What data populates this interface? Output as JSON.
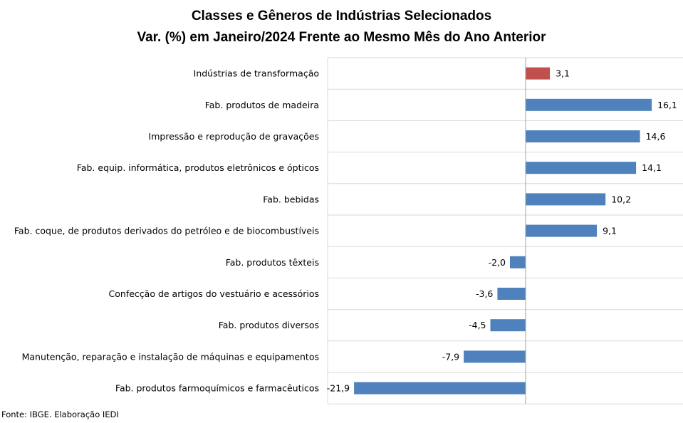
{
  "title_line1": "Classes e Gêneros de Indústrias Selecionados",
  "title_line2": "Var. (%) em Janeiro/2024 Frente ao Mesmo Mês do Ano Anterior",
  "source": "Fonte: IBGE. Elaboração IEDI",
  "colors": {
    "highlight": "#C0504D",
    "bar": "#4F81BD",
    "grid": "#d9d9d9",
    "axis": "#a0a0a0"
  },
  "chart_data": {
    "type": "bar",
    "orientation": "horizontal",
    "categories": [
      "Indústrias de transformação",
      "Fab. produtos de madeira",
      "Impressão e reprodução de gravações",
      "Fab. equip. informática, produtos eletrônicos e ópticos",
      "Fab. bebidas",
      "Fab. coque, de produtos derivados do petróleo e de biocombustíveis",
      "Fab. produtos têxteis",
      "Confecção de artigos do vestuário e acessórios",
      "Fab. produtos diversos",
      "Manutenção, reparação e instalação de máquinas e equipamentos",
      "Fab. produtos farmoquímicos e farmacêuticos"
    ],
    "values": [
      3.1,
      16.1,
      14.6,
      14.1,
      10.2,
      9.1,
      -2.0,
      -3.6,
      -4.5,
      -7.9,
      -21.9
    ],
    "value_labels": [
      "3,1",
      "16,1",
      "14,6",
      "14,1",
      "10,2",
      "9,1",
      "-2,0",
      "-3,6",
      "-4,5",
      "-7,9",
      "-21,9"
    ],
    "highlight_index": 0,
    "xlim": [
      -25,
      20
    ],
    "grid": true
  }
}
